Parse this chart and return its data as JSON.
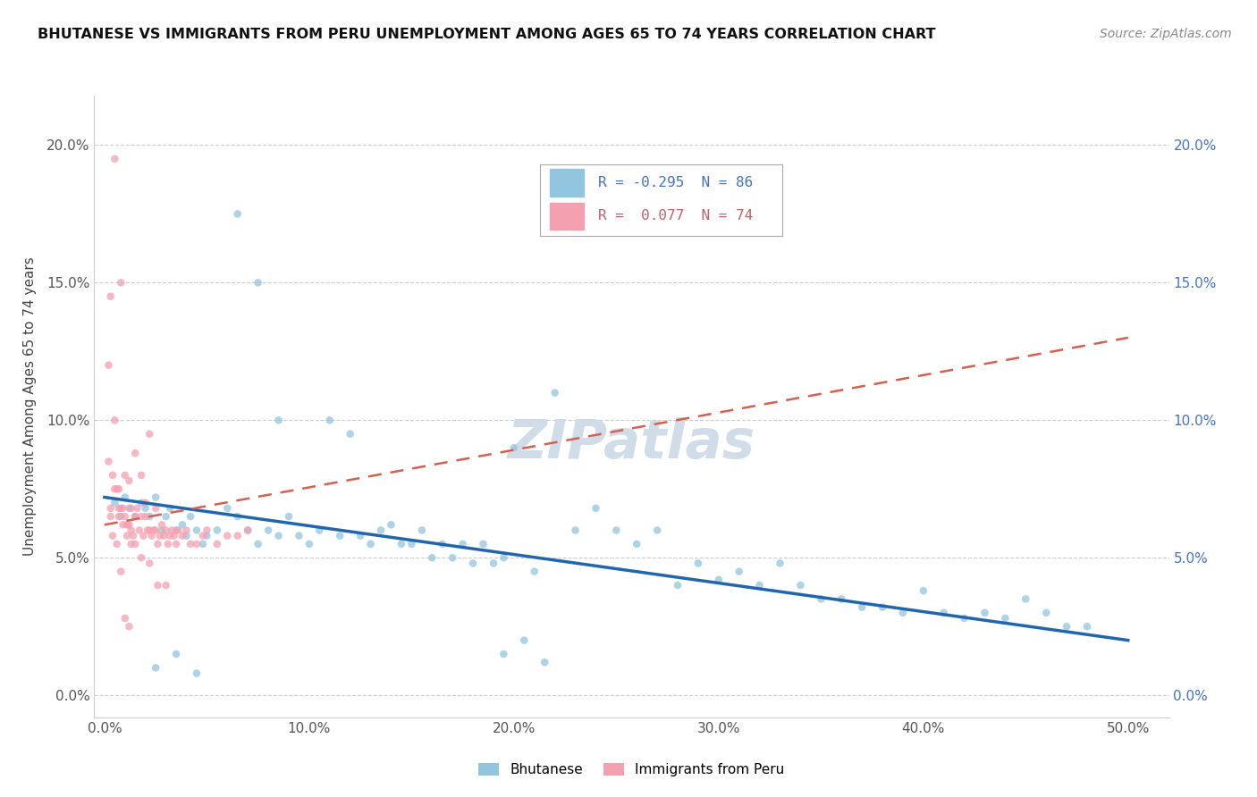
{
  "title": "BHUTANESE VS IMMIGRANTS FROM PERU UNEMPLOYMENT AMONG AGES 65 TO 74 YEARS CORRELATION CHART",
  "source": "Source: ZipAtlas.com",
  "ylabel": "Unemployment Among Ages 65 to 74 years",
  "x_tick_labels": [
    "0.0%",
    "10.0%",
    "20.0%",
    "30.0%",
    "40.0%",
    "50.0%"
  ],
  "x_tick_vals": [
    0.0,
    0.1,
    0.2,
    0.3,
    0.4,
    0.5
  ],
  "y_tick_labels": [
    "0.0%",
    "5.0%",
    "10.0%",
    "15.0%",
    "20.0%"
  ],
  "y_tick_vals": [
    0.0,
    0.05,
    0.1,
    0.15,
    0.2
  ],
  "xlim": [
    -0.005,
    0.52
  ],
  "ylim": [
    -0.008,
    0.218
  ],
  "blue_color": "#92c5de",
  "pink_color": "#f4a0b0",
  "blue_line_color": "#2166ac",
  "pink_line_color": "#d6604d",
  "legend_R_blue": "-0.295",
  "legend_N_blue": "86",
  "legend_R_pink": "0.077",
  "legend_N_pink": "74",
  "watermark": "ZIPatlas",
  "blue_scatter_x": [
    0.005,
    0.008,
    0.01,
    0.012,
    0.015,
    0.018,
    0.02,
    0.022,
    0.025,
    0.028,
    0.03,
    0.032,
    0.035,
    0.038,
    0.04,
    0.042,
    0.045,
    0.048,
    0.05,
    0.055,
    0.06,
    0.065,
    0.07,
    0.075,
    0.08,
    0.085,
    0.09,
    0.095,
    0.1,
    0.105,
    0.11,
    0.115,
    0.12,
    0.125,
    0.13,
    0.135,
    0.14,
    0.145,
    0.15,
    0.155,
    0.16,
    0.165,
    0.17,
    0.175,
    0.18,
    0.185,
    0.19,
    0.195,
    0.2,
    0.21,
    0.22,
    0.23,
    0.24,
    0.25,
    0.26,
    0.27,
    0.28,
    0.29,
    0.3,
    0.31,
    0.32,
    0.33,
    0.34,
    0.35,
    0.36,
    0.37,
    0.38,
    0.39,
    0.4,
    0.41,
    0.42,
    0.43,
    0.44,
    0.45,
    0.46,
    0.47,
    0.48,
    0.065,
    0.075,
    0.085,
    0.195,
    0.205,
    0.215,
    0.025,
    0.035,
    0.045
  ],
  "blue_scatter_y": [
    0.07,
    0.065,
    0.072,
    0.068,
    0.065,
    0.07,
    0.068,
    0.065,
    0.072,
    0.06,
    0.065,
    0.068,
    0.06,
    0.062,
    0.058,
    0.065,
    0.06,
    0.055,
    0.058,
    0.06,
    0.068,
    0.065,
    0.06,
    0.055,
    0.06,
    0.058,
    0.065,
    0.058,
    0.055,
    0.06,
    0.1,
    0.058,
    0.095,
    0.058,
    0.055,
    0.06,
    0.062,
    0.055,
    0.055,
    0.06,
    0.05,
    0.055,
    0.05,
    0.055,
    0.048,
    0.055,
    0.048,
    0.05,
    0.09,
    0.045,
    0.11,
    0.06,
    0.068,
    0.06,
    0.055,
    0.06,
    0.04,
    0.048,
    0.042,
    0.045,
    0.04,
    0.048,
    0.04,
    0.035,
    0.035,
    0.032,
    0.032,
    0.03,
    0.038,
    0.03,
    0.028,
    0.03,
    0.028,
    0.035,
    0.03,
    0.025,
    0.025,
    0.175,
    0.15,
    0.1,
    0.015,
    0.02,
    0.012,
    0.01,
    0.015,
    0.008
  ],
  "pink_scatter_x": [
    0.002,
    0.003,
    0.004,
    0.005,
    0.005,
    0.006,
    0.007,
    0.007,
    0.008,
    0.008,
    0.009,
    0.01,
    0.01,
    0.011,
    0.012,
    0.012,
    0.013,
    0.013,
    0.014,
    0.015,
    0.015,
    0.016,
    0.017,
    0.018,
    0.018,
    0.019,
    0.02,
    0.02,
    0.021,
    0.022,
    0.022,
    0.023,
    0.024,
    0.025,
    0.025,
    0.026,
    0.027,
    0.028,
    0.029,
    0.03,
    0.031,
    0.032,
    0.033,
    0.034,
    0.035,
    0.036,
    0.038,
    0.04,
    0.042,
    0.045,
    0.048,
    0.05,
    0.055,
    0.06,
    0.065,
    0.07,
    0.003,
    0.005,
    0.007,
    0.009,
    0.011,
    0.013,
    0.015,
    0.018,
    0.022,
    0.026,
    0.03,
    0.002,
    0.003,
    0.004,
    0.006,
    0.008,
    0.01,
    0.012
  ],
  "pink_scatter_y": [
    0.12,
    0.068,
    0.08,
    0.1,
    0.195,
    0.075,
    0.068,
    0.075,
    0.068,
    0.15,
    0.068,
    0.065,
    0.08,
    0.062,
    0.062,
    0.078,
    0.06,
    0.068,
    0.058,
    0.065,
    0.088,
    0.068,
    0.06,
    0.065,
    0.08,
    0.058,
    0.065,
    0.07,
    0.06,
    0.06,
    0.095,
    0.058,
    0.06,
    0.06,
    0.068,
    0.055,
    0.058,
    0.062,
    0.058,
    0.06,
    0.055,
    0.058,
    0.06,
    0.058,
    0.055,
    0.06,
    0.058,
    0.06,
    0.055,
    0.055,
    0.058,
    0.06,
    0.055,
    0.058,
    0.058,
    0.06,
    0.145,
    0.075,
    0.065,
    0.062,
    0.058,
    0.055,
    0.055,
    0.05,
    0.048,
    0.04,
    0.04,
    0.085,
    0.065,
    0.058,
    0.055,
    0.045,
    0.028,
    0.025
  ],
  "blue_trend_x": [
    0.0,
    0.5
  ],
  "blue_trend_y": [
    0.072,
    0.02
  ],
  "pink_trend_x": [
    0.0,
    0.5
  ],
  "pink_trend_y": [
    0.062,
    0.13
  ]
}
